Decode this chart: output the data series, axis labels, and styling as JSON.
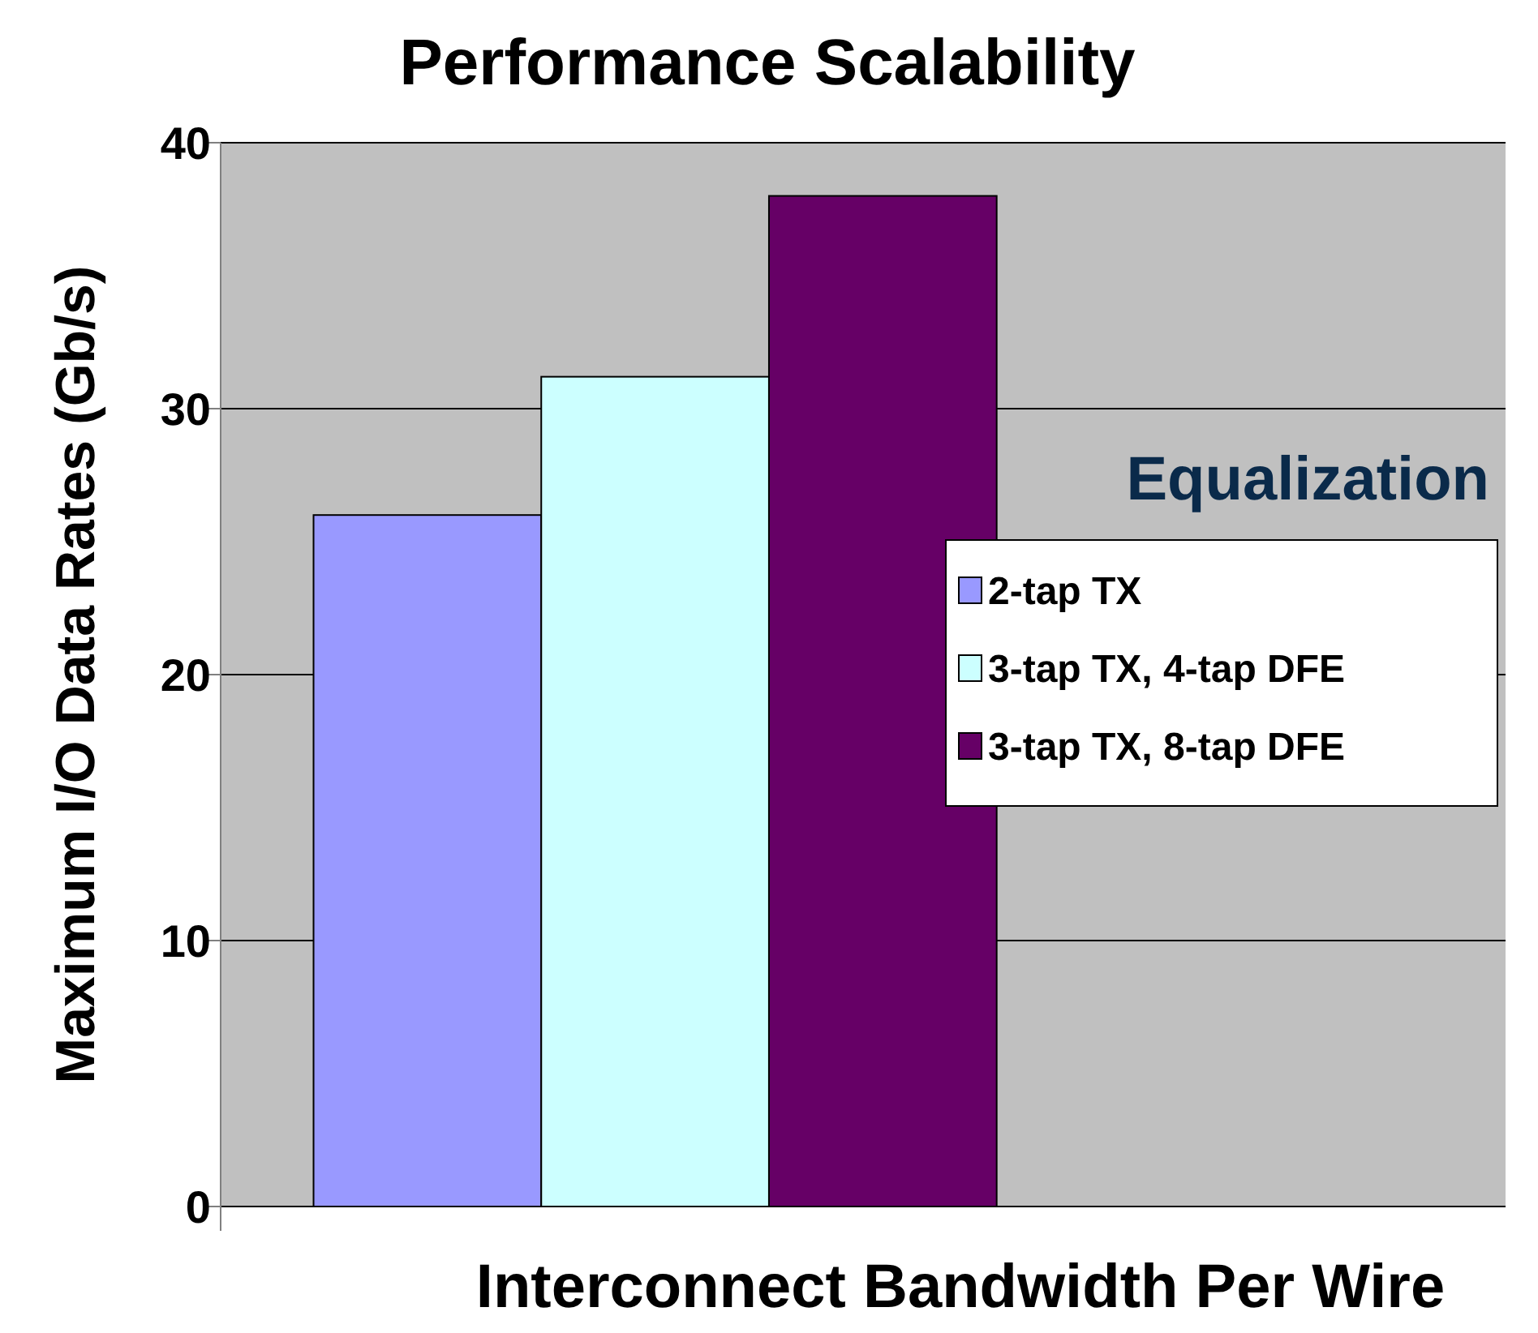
{
  "chart_data": {
    "type": "bar",
    "title": "Performance Scalability",
    "xlabel": "Interconnect Bandwidth Per Wire",
    "ylabel": "Maximum I/O Data Rates (Gb/s)",
    "legend_title": "Equalization",
    "categories": [
      null
    ],
    "series": [
      {
        "name": "2-tap TX",
        "color": "#9999ff",
        "values": [
          26
        ]
      },
      {
        "name": "3-tap TX, 4-tap DFE",
        "color": "#ccffff",
        "values": [
          31.2
        ]
      },
      {
        "name": "3-tap TX, 8-tap DFE",
        "color": "#660066",
        "values": [
          38
        ]
      }
    ],
    "ylim": [
      0,
      40
    ],
    "yticks": [
      0,
      10,
      20,
      30,
      40
    ],
    "grid": "y",
    "legend": "right"
  }
}
